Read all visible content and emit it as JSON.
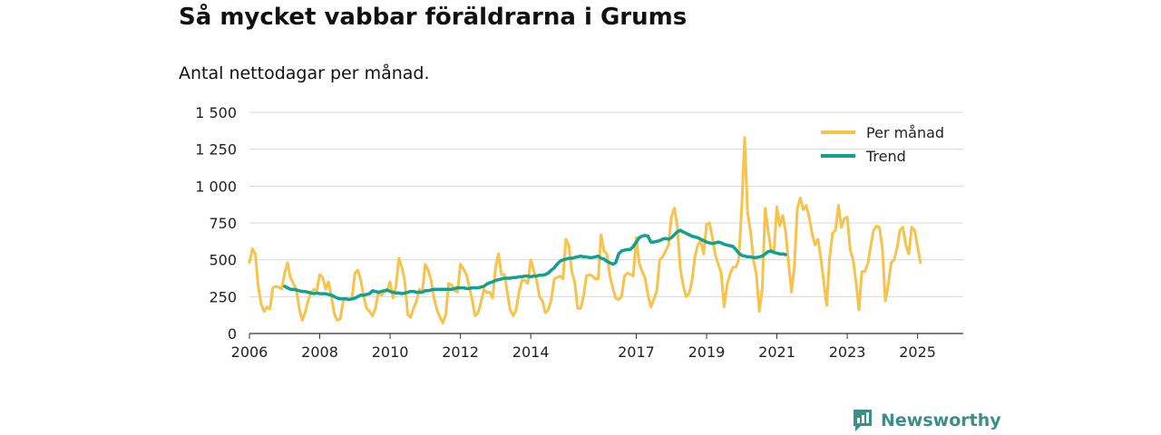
{
  "chart_data": {
    "type": "line",
    "title": "Så mycket vabbar föräldrarna i Grums",
    "subtitle": "Antal nettodagar per månad.",
    "xlabel": "",
    "ylabel": "",
    "ylim": [
      0,
      1500
    ],
    "y_ticks": [
      0,
      250,
      500,
      750,
      1000,
      1250,
      1500
    ],
    "y_tick_labels": [
      "0",
      "250",
      "500",
      "750",
      "1 000",
      "1 250",
      "1 500"
    ],
    "x_ticks": [
      2006,
      2008,
      2010,
      2012,
      2014,
      2017,
      2019,
      2021,
      2023,
      2025
    ],
    "legend_position": "top-right",
    "grid": true,
    "series": [
      {
        "name": "Per månad",
        "color": "#f7c34a",
        "start_year": 2006,
        "values": [
          480,
          575,
          540,
          320,
          200,
          150,
          180,
          165,
          310,
          320,
          315,
          300,
          410,
          480,
          380,
          340,
          300,
          170,
          90,
          140,
          220,
          280,
          300,
          290,
          400,
          380,
          300,
          350,
          250,
          130,
          90,
          100,
          220,
          240,
          230,
          240,
          410,
          430,
          360,
          250,
          170,
          150,
          120,
          170,
          280,
          260,
          280,
          290,
          350,
          240,
          320,
          510,
          450,
          360,
          130,
          110,
          170,
          220,
          300,
          280,
          470,
          430,
          360,
          240,
          160,
          110,
          70,
          130,
          340,
          330,
          290,
          280,
          470,
          440,
          400,
          320,
          230,
          120,
          140,
          210,
          300,
          280,
          280,
          240,
          450,
          540,
          400,
          400,
          280,
          160,
          120,
          160,
          280,
          360,
          360,
          340,
          500,
          430,
          360,
          250,
          220,
          140,
          160,
          230,
          370,
          380,
          390,
          370,
          640,
          600,
          420,
          350,
          170,
          170,
          250,
          390,
          400,
          390,
          370,
          370,
          670,
          560,
          540,
          390,
          310,
          240,
          230,
          250,
          390,
          410,
          400,
          390,
          650,
          480,
          420,
          380,
          260,
          180,
          230,
          290,
          500,
          520,
          560,
          600,
          790,
          850,
          730,
          450,
          330,
          250,
          270,
          350,
          520,
          600,
          630,
          540,
          740,
          750,
          650,
          530,
          470,
          410,
          180,
          330,
          400,
          450,
          450,
          500,
          860,
          1330,
          820,
          690,
          500,
          400,
          150,
          300,
          850,
          700,
          560,
          550,
          860,
          730,
          800,
          690,
          480,
          280,
          470,
          850,
          920,
          840,
          870,
          790,
          680,
          600,
          640,
          510,
          350,
          190,
          520,
          680,
          700,
          870,
          720,
          780,
          790,
          570,
          500,
          350,
          160,
          420,
          420,
          470,
          590,
          700,
          730,
          720,
          580,
          220,
          330,
          480,
          500,
          580,
          700,
          720,
          600,
          540,
          720,
          700,
          590,
          480
        ]
      },
      {
        "name": "Trend",
        "color": "#13a091",
        "start_year": 2007,
        "values": [
          320,
          310,
          300,
          300,
          295,
          290,
          285,
          285,
          280,
          275,
          270,
          275,
          270,
          270,
          270,
          265,
          260,
          250,
          240,
          235,
          235,
          235,
          230,
          235,
          240,
          250,
          260,
          260,
          265,
          270,
          290,
          285,
          280,
          285,
          290,
          295,
          285,
          280,
          275,
          275,
          270,
          275,
          280,
          285,
          285,
          280,
          280,
          280,
          290,
          290,
          295,
          300,
          300,
          300,
          300,
          300,
          300,
          300,
          305,
          310,
          310,
          310,
          305,
          305,
          310,
          310,
          310,
          315,
          320,
          335,
          345,
          350,
          360,
          365,
          370,
          375,
          375,
          375,
          380,
          380,
          385,
          385,
          390,
          390,
          385,
          390,
          390,
          395,
          395,
          400,
          410,
          430,
          445,
          470,
          490,
          500,
          505,
          510,
          510,
          515,
          520,
          525,
          520,
          520,
          515,
          515,
          520,
          525,
          510,
          505,
          490,
          480,
          470,
          480,
          540,
          560,
          565,
          570,
          570,
          590,
          620,
          650,
          660,
          665,
          660,
          620,
          620,
          625,
          630,
          640,
          645,
          640,
          650,
          670,
          690,
          700,
          690,
          680,
          670,
          660,
          655,
          650,
          640,
          630,
          620,
          615,
          610,
          615,
          620,
          615,
          605,
          600,
          595,
          590,
          570,
          545,
          530,
          525,
          520,
          520,
          515,
          515,
          520,
          525,
          540,
          555,
          560,
          550,
          545,
          540,
          540,
          535
        ]
      }
    ]
  },
  "brand": {
    "name": "Newsworthy",
    "color": "#3a8f8a"
  }
}
